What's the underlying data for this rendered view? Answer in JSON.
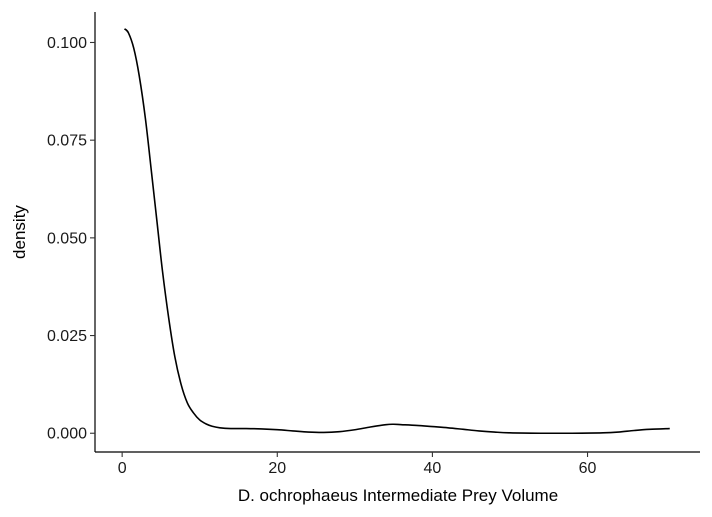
{
  "chart_data": {
    "type": "line",
    "title": "",
    "xlabel": "D. ochrophaeus Intermediate Prey Volume",
    "ylabel": "density",
    "xlim": [
      -3.5,
      74.5
    ],
    "ylim": [
      -0.0048,
      0.1078
    ],
    "x_ticks": [
      0,
      20,
      40,
      60
    ],
    "x_tick_labels": [
      "0",
      "20",
      "40",
      "60"
    ],
    "y_ticks": [
      0.0,
      0.025,
      0.05,
      0.075,
      0.1
    ],
    "y_tick_labels": [
      "0.000",
      "0.025",
      "0.050",
      "0.075",
      "0.100"
    ],
    "grid": false,
    "line_color": "#000000",
    "series": [
      {
        "x": [
          0.3,
          0.8,
          1.5,
          2.2,
          3.0,
          3.8,
          4.5,
          5.2,
          6.0,
          6.8,
          7.6,
          8.4,
          9.2,
          10.0,
          10.8,
          11.6,
          12.6,
          14.0,
          16.0,
          18.0,
          20.0,
          22.0,
          24.0,
          26.0,
          28.0,
          30.0,
          32.0,
          34.0,
          35.0,
          36.0,
          38.0,
          40.0,
          42.0,
          44.0,
          46.0,
          48.0,
          50.0,
          54.0,
          58.0,
          62.0,
          64.0,
          66.0,
          68.0,
          70.6
        ],
        "y": [
          0.1035,
          0.1025,
          0.0985,
          0.0915,
          0.0805,
          0.0665,
          0.054,
          0.0415,
          0.0295,
          0.0195,
          0.0125,
          0.0078,
          0.0052,
          0.0034,
          0.0024,
          0.0018,
          0.0014,
          0.0012,
          0.0012,
          0.0011,
          0.0009,
          0.0006,
          0.0003,
          0.0002,
          0.0004,
          0.0009,
          0.0016,
          0.0022,
          0.0023,
          0.0022,
          0.002,
          0.0017,
          0.0014,
          0.001,
          0.0006,
          0.0003,
          0.0001,
          0.0,
          0.0,
          0.0001,
          0.0003,
          0.0007,
          0.001,
          0.0012
        ]
      }
    ]
  }
}
